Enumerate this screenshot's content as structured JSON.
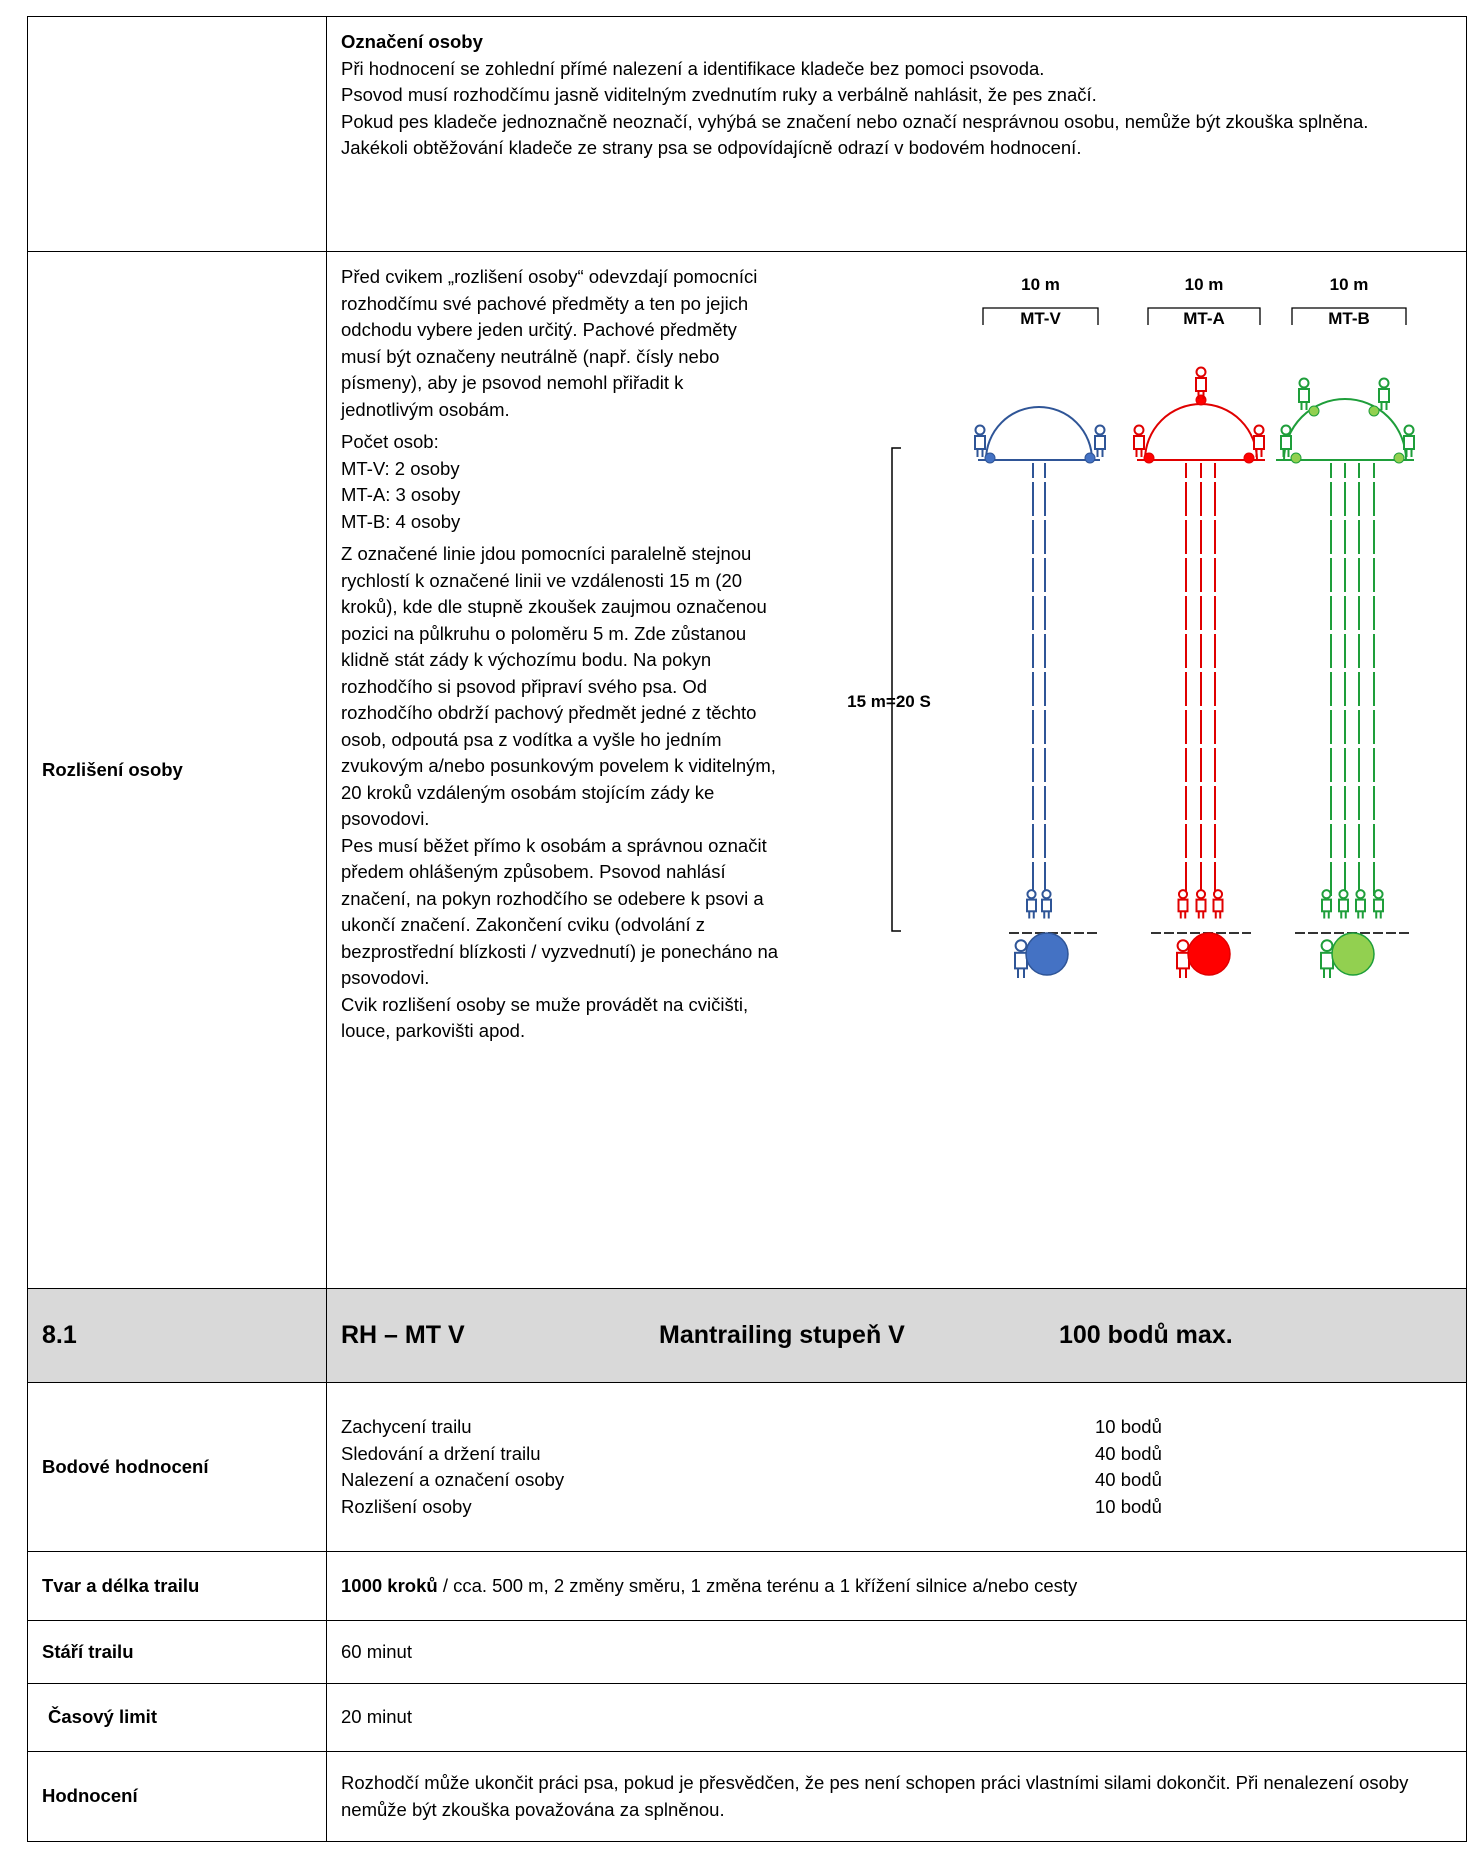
{
  "marking": {
    "title": "Označení osoby",
    "paragraphs": [
      "Při hodnocení se zohlední přímé nalezení a identifikace kladeče bez pomoci psovoda.",
      "Psovod musí rozhodčímu jasně viditelným zvednutím ruky a verbálně nahlásit, že pes značí.",
      "Pokud pes kladeče jednoznačně neoznačí, vyhýbá se značení nebo označí nesprávnou osobu, nemůže být zkouška splněna.",
      "Jakékoli obtěžování kladeče ze strany psa se odpovídajícně odrazí v bodovém hodnocení."
    ]
  },
  "discrimination": {
    "label": "Rozlišení osoby",
    "intro": "Před cvikem „rozlišení osoby“ odevzdají pomocníci rozhodčímu své pachové předměty a ten po jejich odchodu vybere jeden určitý. Pachové předměty musí být označeny neutrálně (např. čísly nebo písmeny), aby je psovod nemohl přiřadit k jednotlivým osobám.",
    "count_title": "Počet osob:",
    "counts": [
      "MT-V: 2 osoby",
      "MT-A: 3 osoby",
      "MT-B: 4 osoby"
    ],
    "paragraphs": [
      "Z označené linie jdou pomocníci paralelně stejnou rychlostí k označené linii ve vzdálenosti 15 m (20 kroků), kde dle stupně zkoušek zaujmou označenou pozici na půlkruhu o poloměru 5 m. Zde zůstanou klidně stát zády k výchozímu bodu. Na pokyn rozhodčího si psovod připraví svého psa. Od rozhodčího obdrží pachový předmět jedné z těchto osob, odpoutá psa z vodítka a vyšle ho jedním zvukovým a/nebo posunkovým povelem k viditelným, 20 kroků vzdáleným osobám stojícím zády ke psovodovi.",
      "Pes musí běžet přímo k osobám a správnou označit předem ohlášeným způsobem. Psovod nahlásí značení, na pokyn rozhodčího se odebere k psovi a ukončí značení. Zakončení cviku (odvolání z bezprostřední blízkosti / vyzvednutí) je ponecháno na psovodovi.",
      "Cvik rozlišení osoby se muže provádět na cvičišti, louce, parkovišti apod."
    ],
    "diagram": {
      "distance_label": "15 m=20 S",
      "groups": [
        {
          "width": "10 m",
          "name": "MT-V"
        },
        {
          "width": "10 m",
          "name": "MT-A"
        },
        {
          "width": "10 m",
          "name": "MT-B"
        }
      ]
    }
  },
  "exam": {
    "number": "8.1",
    "code": "RH – MT V",
    "name": "Mantrailing stupeň V",
    "max": "100 bodů max."
  },
  "scoring": {
    "label": "Bodové hodnocení",
    "items": [
      {
        "name": "Zachycení trailu",
        "points": "10 bodů"
      },
      {
        "name": "Sledování a držení trailu",
        "points": "40 bodů"
      },
      {
        "name": "Nalezení a označení osoby",
        "points": "40 bodů"
      },
      {
        "name": "Rozlišení osoby",
        "points": "10 bodů"
      }
    ]
  },
  "trail": {
    "label": "Tvar a délka trailu",
    "bold": "1000 kroků",
    "text": "/ cca. 500 m, 2 změny směru, 1 změna terénu a 1 křížení silnice a/nebo cesty"
  },
  "age": {
    "label": "Stáří trailu",
    "text": "60 minut"
  },
  "limit": {
    "label": "Časový limit",
    "text": "20 minut"
  },
  "evaluation": {
    "label": "Hodnocení",
    "text": "Rozhodčí může ukončit práci psa, pokud je přesvědčen, že pes není schopen práci vlastními silami dokončit. Při nenalezení osoby nemůže být zkouška považována za splněnou."
  }
}
